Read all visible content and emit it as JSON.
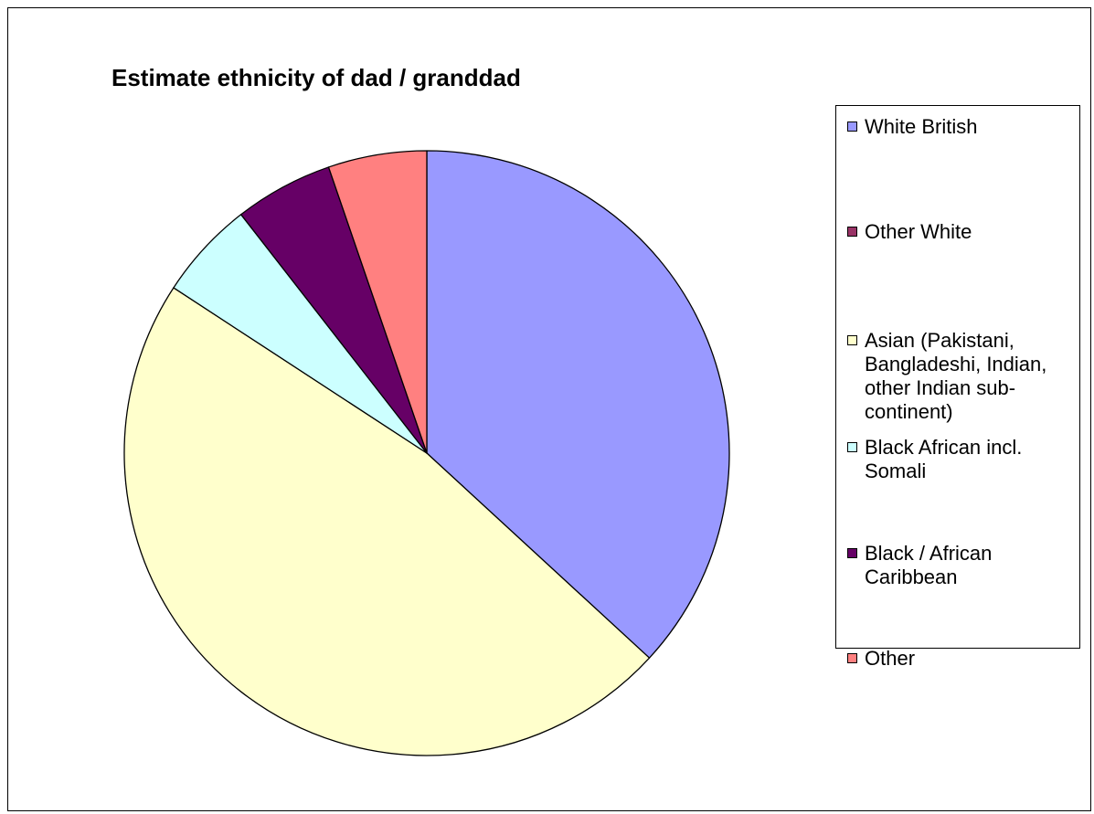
{
  "chart_data": {
    "type": "pie",
    "title": "Estimate ethnicity of dad / granddad",
    "categories": [
      "White British",
      "Other White",
      "Asian (Pakistani, Bangladeshi, Indian, other Indian sub-continent)",
      "Black African incl. Somali",
      "Black / African Caribbean",
      "Other"
    ],
    "values": [
      7,
      0,
      9,
      1,
      1,
      1
    ],
    "colors": [
      "#9999ff",
      "#993366",
      "#ffffcc",
      "#ccffff",
      "#660066",
      "#ff8080"
    ],
    "start_angle": "12 o'clock",
    "direction": "clockwise",
    "legend": "right"
  }
}
